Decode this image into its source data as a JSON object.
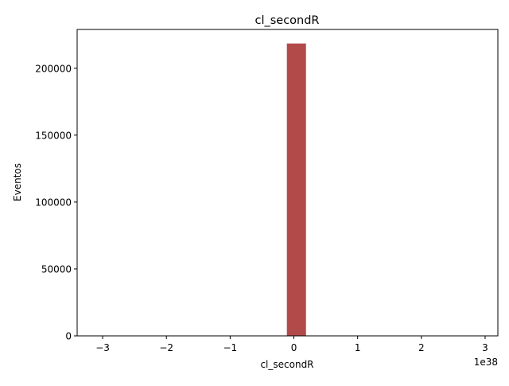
{
  "chart_data": {
    "type": "bar",
    "title": "cl_secondR",
    "xlabel": "cl_secondR",
    "ylabel": "Eventos",
    "x_offset_label": "1e38",
    "xlim": [
      -3.4e+38,
      3.2e+38
    ],
    "ylim": [
      0,
      229000
    ],
    "x_ticks": [
      -3e+38,
      -2e+38,
      -1e+38,
      0,
      1e+38,
      2e+38,
      3e+38
    ],
    "x_tick_labels": [
      "−3",
      "−2",
      "−1",
      "0",
      "1",
      "2",
      "3"
    ],
    "y_ticks": [
      0,
      50000,
      100000,
      150000,
      200000
    ],
    "y_tick_labels": [
      "0",
      "50000",
      "100000",
      "150000",
      "200000"
    ],
    "bins": [
      {
        "x0": -1.1e+37,
        "x1": 1.9e+37,
        "value": 218500
      }
    ],
    "bar_color": "#a52a2a",
    "grid": false
  }
}
